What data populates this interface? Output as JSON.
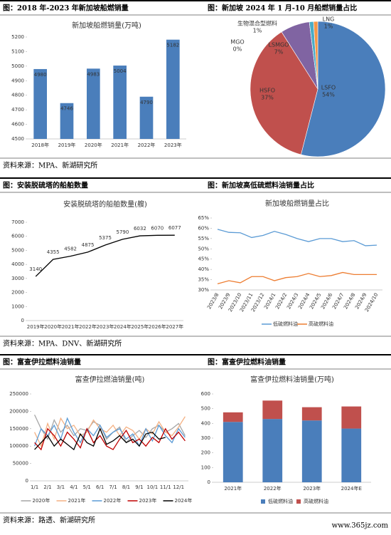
{
  "captions": [
    "图：2018 年-2023 年新加坡船燃销量",
    "图：新加坡 2024 年 1 月-10 月船燃销量占比",
    "图：安装脱硫塔的船舶数量",
    "图：新加坡高低硫燃料油销量占比",
    "图：富查伊拉燃料油销量",
    "图：富查伊拉燃料油销量"
  ],
  "sources": [
    "资料来源：MPA、新湖研究所",
    "资料来源：MPA、DNV、新湖研究所",
    "资料来源：路透、新湖研究所"
  ],
  "watermark": "www.365jz.com",
  "chart_data": [
    {
      "type": "bar",
      "title": "新加坡船燃销量(万吨)",
      "categories": [
        "2018年",
        "2019年",
        "2020年",
        "2021年",
        "2022年",
        "2023年"
      ],
      "values": [
        4980,
        4746,
        4983,
        5004,
        4790,
        5182
      ],
      "color": "#4a7ebb",
      "ylim": [
        4500,
        5200
      ],
      "yticks": [
        4500,
        4600,
        4700,
        4800,
        4900,
        5000,
        5100,
        5200
      ],
      "grid": false,
      "data_labels": true
    },
    {
      "type": "pie",
      "labels": [
        "LSFO",
        "HSFO",
        "LSMGO",
        "MGO",
        "生物混合型燃料",
        "LNG"
      ],
      "values": [
        54,
        37,
        7,
        0,
        1,
        1
      ],
      "value_labels": [
        "54%",
        "37%",
        "7%",
        "0%",
        "1%",
        "1%"
      ],
      "colors": [
        "#4a7ebb",
        "#c0504d",
        "#8064a2",
        "#9bbb59",
        "#4bacc6",
        "#f79646"
      ]
    },
    {
      "type": "line",
      "title": "安装脱硫塔的船舶数量(艘)",
      "categories": [
        "2019年",
        "2020年",
        "2021年",
        "2022年",
        "2023年",
        "2024年",
        "2025年",
        "2026年",
        "2027年"
      ],
      "values": [
        3140,
        4355,
        4582,
        4875,
        5375,
        5790,
        6032,
        6070,
        6077
      ],
      "color": "#000000",
      "ylim": [
        0,
        7000
      ],
      "yticks": [
        0,
        1000,
        2000,
        3000,
        4000,
        5000,
        6000,
        7000
      ],
      "grid": false,
      "data_labels": true
    },
    {
      "type": "line",
      "title": "新加坡船燃销量占比",
      "categories": [
        "2023/8",
        "2023/9",
        "2023/10",
        "2023/11",
        "2023/12",
        "2024/1",
        "2024/2",
        "2024/3",
        "2024/4",
        "2024/5",
        "2024/6",
        "2024/7",
        "2024/8",
        "2024/9",
        "2024/10"
      ],
      "series": [
        {
          "name": "低硫燃料油",
          "color": "#5b9bd5",
          "values": [
            59.5,
            58,
            57.8,
            55.5,
            56.5,
            58.5,
            57,
            55,
            53.5,
            55,
            55,
            53.5,
            54,
            51.5,
            51.8
          ]
        },
        {
          "name": "高硫燃料油",
          "color": "#ed7d31",
          "values": [
            33,
            34.5,
            33.5,
            36.5,
            36.5,
            34.5,
            36,
            36.5,
            38,
            36.5,
            37,
            38.5,
            37.5,
            37.5,
            37.5
          ]
        }
      ],
      "ylim": [
        30,
        65
      ],
      "yticks": [
        {
          "value": 30,
          "label": "30%"
        },
        {
          "value": 35,
          "label": "35%"
        },
        {
          "value": 40,
          "label": "40%"
        },
        {
          "value": 45,
          "label": "45%"
        },
        {
          "value": 50,
          "label": "50%"
        },
        {
          "value": 55,
          "label": "55%"
        },
        {
          "value": 60,
          "label": "60%"
        },
        {
          "value": 65,
          "label": "65%"
        }
      ],
      "grid": false,
      "legend": "bottom",
      "rotate_x": true
    },
    {
      "type": "line",
      "title": "富查伊拉燃油销量(吨)",
      "categories": [
        "1/1",
        null,
        "2/1",
        null,
        "3/1",
        null,
        "4/1",
        null,
        "5/1",
        null,
        "6/1",
        null,
        "7/1",
        null,
        "8/1",
        null,
        "9/1",
        null,
        "10/1",
        null,
        "11/1",
        null,
        "12/1",
        null
      ],
      "series": [
        {
          "name": "2020年",
          "color": "#a6a6a6",
          "values": [
            190000,
            150000,
            120000,
            175000,
            140000,
            160000,
            130000,
            150000,
            145000,
            170000,
            160000,
            120000,
            140000,
            155000,
            110000,
            130000,
            145000,
            125000,
            150000,
            160000,
            140000,
            150000,
            165000,
            130000
          ]
        },
        {
          "name": "2021年",
          "color": "#f4b183",
          "values": [
            140000,
            100000,
            165000,
            120000,
            180000,
            150000,
            160000,
            130000,
            140000,
            175000,
            150000,
            140000,
            160000,
            130000,
            155000,
            145000,
            120000,
            150000,
            135000,
            170000,
            140000,
            130000,
            155000,
            185000
          ]
        },
        {
          "name": "2022年",
          "color": "#5b9bd5",
          "values": [
            100000,
            150000,
            130000,
            160000,
            120000,
            180000,
            140000,
            110000,
            150000,
            130000,
            160000,
            125000,
            140000,
            150000,
            120000,
            135000,
            100000,
            150000,
            115000,
            160000,
            130000,
            110000,
            150000,
            125000
          ]
        },
        {
          "name": "2023年",
          "color": "#c00000",
          "values": [
            110000,
            90000,
            150000,
            130000,
            100000,
            140000,
            120000,
            95000,
            150000,
            110000,
            130000,
            100000,
            90000,
            120000,
            145000,
            110000,
            120000,
            100000,
            125000,
            110000,
            150000,
            120000,
            140000,
            115000
          ]
        },
        {
          "name": "2024年",
          "color": "#000000",
          "values": [
            90000,
            110000,
            130000,
            100000,
            120000,
            105000,
            90000,
            135000,
            110000,
            100000,
            150000,
            105000,
            115000,
            130000,
            110000,
            120000,
            100000,
            135000,
            140000,
            120000,
            125000,
            null,
            null,
            null
          ]
        }
      ],
      "ylim": [
        0,
        250000
      ],
      "yticks": [
        0,
        50000,
        100000,
        150000,
        200000,
        250000
      ],
      "grid": false,
      "legend": "bottom"
    },
    {
      "type": "stacked_bar",
      "title": "富查伊拉燃料油销量(万吨)",
      "categories": [
        "2021年",
        "2022年",
        "2023年",
        "2024年E"
      ],
      "series": [
        {
          "name": "低硫燃料油",
          "color": "#4a7ebb",
          "values": [
            410,
            430,
            420,
            365
          ]
        },
        {
          "name": "高硫燃料油",
          "color": "#c0504d",
          "values": [
            65,
            125,
            90,
            150
          ]
        }
      ],
      "ylim": [
        0,
        600
      ],
      "yticks": [
        0,
        100,
        200,
        300,
        400,
        500,
        600
      ],
      "grid": false,
      "legend": "bottom"
    }
  ]
}
